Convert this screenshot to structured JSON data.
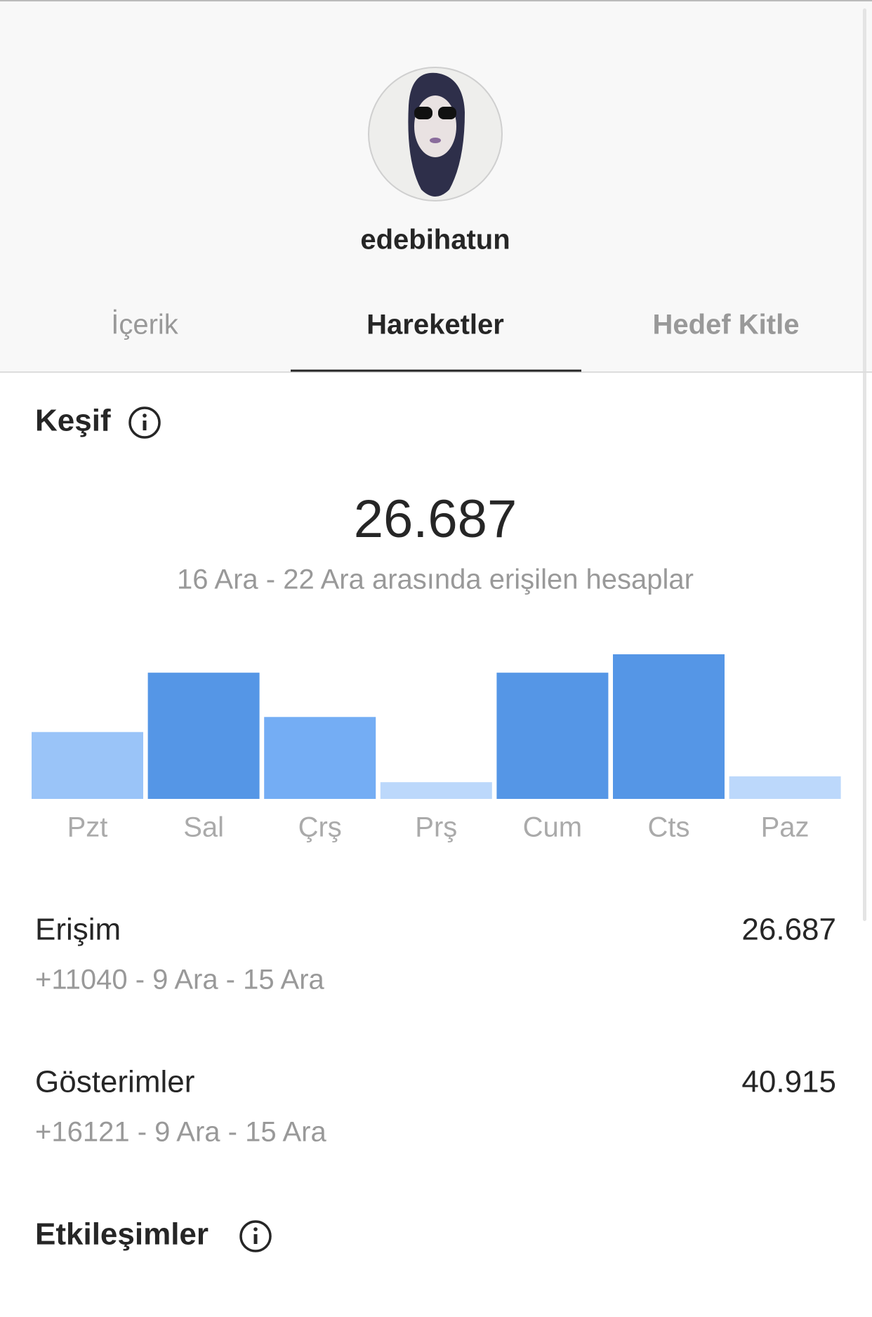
{
  "profile": {
    "username": "edebihatun"
  },
  "tabs": [
    "İçerik",
    "Hareketler",
    "Hedef Kitle"
  ],
  "discovery": {
    "title": "Keşif",
    "total": "26.687",
    "subtitle": "16 Ara - 22 Ara arasında erişilen hesaplar"
  },
  "chart_data": {
    "type": "bar",
    "categories": [
      "Pzt",
      "Sal",
      "Çrş",
      "Prş",
      "Cum",
      "Cts",
      "Paz"
    ],
    "values": [
      80,
      151,
      98,
      20,
      151,
      173,
      27
    ],
    "colors": [
      "#9ac4f8",
      "#5596e6",
      "#74adf4",
      "#bcd8fb",
      "#5596e6",
      "#5596e6",
      "#bcd8fb"
    ]
  },
  "metrics": [
    {
      "label": "Erişim",
      "value": "26.687",
      "change": "+11040 - 9 Ara - 15 Ara"
    },
    {
      "label": "Gösterimler",
      "value": "40.915",
      "change": "+16121 - 9 Ara - 15 Ara"
    }
  ],
  "interactions": {
    "title": "Etkileşimler"
  }
}
